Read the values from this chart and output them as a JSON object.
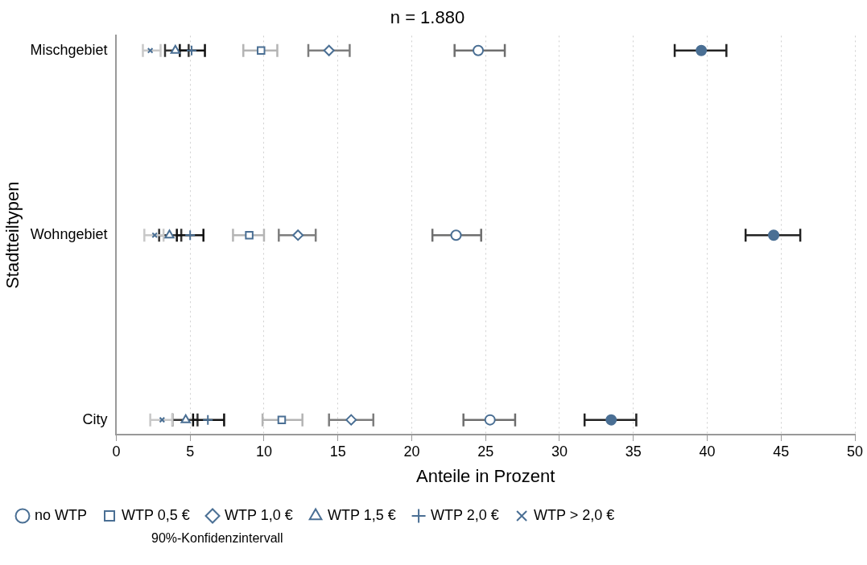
{
  "chart_data": {
    "type": "scatter",
    "orientation": "horizontal",
    "title": "n = 1.880",
    "xlabel": "Anteile in Prozent",
    "ylabel": "Stadtteiltypen",
    "categories": [
      "Mischgebiet",
      "Wohngebiet",
      "City"
    ],
    "xlim": [
      0,
      50
    ],
    "xticks": [
      0,
      5,
      10,
      15,
      20,
      25,
      30,
      35,
      40,
      45,
      50
    ],
    "grid": "x",
    "legend": "bottom",
    "annotations": [
      "90%-Konfidenzintervall"
    ],
    "series": [
      {
        "name": "no WTP",
        "color": "#4a6f94",
        "marker": "circle",
        "values": [
          24.5,
          23.0,
          25.3
        ],
        "errors": [
          [
            22.9,
            26.3
          ],
          [
            21.4,
            24.7
          ],
          [
            23.5,
            27.0
          ]
        ]
      },
      {
        "name": "WTP 0,5 €",
        "color": "#4a6f94",
        "marker": "square",
        "values": [
          9.8,
          9.0,
          11.2
        ],
        "errors": [
          [
            8.6,
            10.9
          ],
          [
            7.9,
            10.0
          ],
          [
            9.9,
            12.6
          ]
        ]
      },
      {
        "name": "WTP 1,0 €",
        "color": "#4a6f94",
        "marker": "diamond",
        "values": [
          14.4,
          12.3,
          15.9
        ],
        "errors": [
          [
            13.0,
            15.8
          ],
          [
            11.0,
            13.5
          ],
          [
            14.4,
            17.4
          ]
        ]
      },
      {
        "name": "WTP 1,5 €",
        "color": "#4a6f94",
        "marker": "triangle",
        "values": [
          4.0,
          3.6,
          4.7
        ],
        "errors": [
          [
            3.3,
            4.9
          ],
          [
            2.9,
            4.4
          ],
          [
            3.8,
            5.5
          ]
        ]
      },
      {
        "name": "WTP 2,0 €",
        "color": "#4a6f94",
        "marker": "cross",
        "values": [
          5.1,
          5.0,
          6.2
        ],
        "errors": [
          [
            4.3,
            6.0
          ],
          [
            4.1,
            5.9
          ],
          [
            5.2,
            7.3
          ]
        ]
      },
      {
        "name": "WTP > 2,0 €",
        "color": "#4a6f94",
        "marker": "x",
        "values": [
          2.3,
          2.6,
          3.1
        ],
        "errors": [
          [
            1.8,
            3.0
          ],
          [
            1.9,
            3.2
          ],
          [
            2.3,
            3.8
          ]
        ]
      },
      {
        "color": "#4a6f94",
        "marker": "filled circle",
        "values": [
          39.6,
          44.5,
          33.5
        ],
        "errors": [
          [
            37.8,
            41.3
          ],
          [
            42.6,
            46.3
          ],
          [
            31.7,
            35.2
          ]
        ]
      }
    ]
  }
}
